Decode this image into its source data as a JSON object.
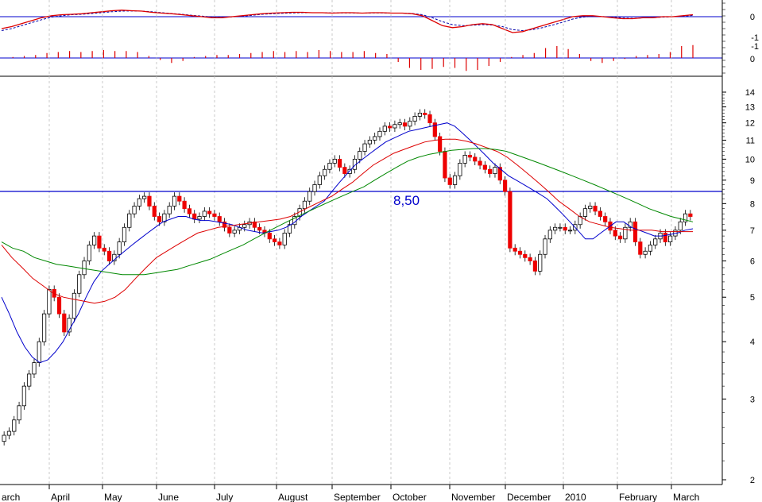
{
  "chart_data": {
    "type": "candlestick",
    "title": "",
    "scale": "log",
    "ylim": [
      2,
      16
    ],
    "y_ticks": [
      2,
      3,
      4,
      5,
      6,
      7,
      8,
      9,
      10,
      11,
      12,
      13,
      14
    ],
    "months": [
      "arch",
      "April",
      "May",
      "June",
      "July",
      "August",
      "September",
      "October",
      "November",
      "December",
      "2010",
      "February",
      "March"
    ],
    "reference_line": {
      "value": 8.5,
      "label": "8,50",
      "color": "#0000cc"
    },
    "price_close": [
      2.5,
      2.55,
      2.7,
      2.9,
      3.2,
      3.4,
      3.6,
      4.0,
      4.6,
      5.2,
      5.0,
      4.6,
      4.2,
      4.5,
      5.1,
      5.6,
      6.0,
      6.5,
      6.8,
      6.4,
      6.3,
      6.0,
      6.2,
      6.6,
      7.1,
      7.6,
      7.9,
      8.2,
      8.3,
      7.9,
      7.5,
      7.3,
      7.6,
      7.9,
      8.3,
      8.1,
      7.8,
      7.6,
      7.4,
      7.5,
      7.7,
      7.6,
      7.5,
      7.3,
      7.1,
      6.9,
      7.0,
      7.1,
      7.2,
      7.3,
      7.1,
      7.0,
      6.9,
      6.7,
      6.6,
      6.5,
      6.9,
      7.2,
      7.5,
      7.8,
      8.1,
      8.5,
      8.8,
      9.2,
      9.5,
      9.8,
      10.0,
      9.6,
      9.3,
      9.5,
      10.0,
      10.4,
      10.8,
      11.0,
      11.2,
      11.5,
      11.8,
      11.7,
      11.9,
      12.0,
      11.8,
      12.1,
      12.4,
      12.6,
      12.5,
      12.0,
      11.2,
      10.4,
      9.1,
      8.8,
      9.2,
      9.8,
      10.2,
      10.1,
      9.9,
      9.7,
      9.5,
      9.3,
      9.6,
      9.0,
      8.5,
      6.4,
      6.3,
      6.2,
      6.1,
      6.0,
      5.7,
      6.2,
      6.7,
      7.0,
      7.1,
      7.1,
      7.0,
      7.0,
      7.2,
      7.5,
      7.8,
      7.9,
      7.7,
      7.5,
      7.3,
      7.0,
      6.8,
      6.7,
      7.1,
      7.3,
      6.6,
      6.2,
      6.3,
      6.5,
      6.7,
      6.9,
      6.6,
      6.8,
      7.0,
      7.3,
      7.6,
      7.5
    ],
    "series": [
      {
        "name": "",
        "color": "#0000cc",
        "values": [
          5.0,
          4.6,
          4.2,
          3.9,
          3.7,
          3.6,
          3.65,
          3.8,
          4.0,
          4.3,
          4.6,
          5.0,
          5.4,
          5.7,
          5.9,
          6.1,
          6.3,
          6.5,
          6.7,
          6.9,
          7.1,
          7.3,
          7.4,
          7.5,
          7.5,
          7.4,
          7.35,
          7.35,
          7.3,
          7.25,
          7.2,
          7.1,
          7.0,
          6.95,
          6.9,
          6.95,
          7.0,
          7.1,
          7.25,
          7.5,
          7.7,
          7.9,
          8.1,
          8.5,
          8.9,
          9.3,
          9.7,
          10.0,
          10.3,
          10.6,
          10.9,
          11.1,
          11.3,
          11.5,
          11.6,
          11.7,
          11.8,
          11.9,
          12.0,
          11.8,
          11.4,
          11.0,
          10.6,
          10.2,
          9.8,
          9.5,
          9.2,
          9.0,
          8.8,
          8.6,
          8.4,
          8.2,
          7.9,
          7.6,
          7.3,
          7.0,
          6.7,
          6.7,
          6.9,
          7.1,
          7.3,
          7.3,
          7.1,
          7.0,
          6.9,
          6.8,
          6.8,
          6.85,
          6.9,
          7.0,
          7.05
        ]
      },
      {
        "name": "",
        "color": "#dd0000",
        "values": [
          6.5,
          6.1,
          5.8,
          5.5,
          5.3,
          5.1,
          5.0,
          4.95,
          4.9,
          4.85,
          4.9,
          5.0,
          5.2,
          5.5,
          5.8,
          6.1,
          6.3,
          6.5,
          6.7,
          6.9,
          7.0,
          7.1,
          7.15,
          7.2,
          7.25,
          7.3,
          7.35,
          7.4,
          7.5,
          7.7,
          7.9,
          8.1,
          8.3,
          8.6,
          8.9,
          9.3,
          9.7,
          10.0,
          10.3,
          10.5,
          10.7,
          10.9,
          11.0,
          11.05,
          11.05,
          10.95,
          10.8,
          10.6,
          10.4,
          10.1,
          9.7,
          9.3,
          8.9,
          8.5,
          8.1,
          7.8,
          7.5,
          7.3,
          7.2,
          7.1,
          7.05,
          7.0,
          7.0,
          7.0,
          6.95,
          6.95,
          6.95,
          6.95
        ]
      },
      {
        "name": "",
        "color": "#008800",
        "values": [
          6.6,
          6.4,
          6.3,
          6.1,
          6.0,
          5.9,
          5.85,
          5.8,
          5.75,
          5.7,
          5.65,
          5.6,
          5.6,
          5.6,
          5.65,
          5.7,
          5.75,
          5.85,
          5.95,
          6.05,
          6.2,
          6.35,
          6.5,
          6.7,
          6.9,
          7.1,
          7.3,
          7.5,
          7.7,
          7.9,
          8.1,
          8.3,
          8.5,
          8.7,
          9.0,
          9.3,
          9.6,
          9.9,
          10.1,
          10.25,
          10.35,
          10.45,
          10.5,
          10.55,
          10.55,
          10.5,
          10.4,
          10.2,
          10.0,
          9.8,
          9.6,
          9.4,
          9.2,
          9.0,
          8.8,
          8.6,
          8.4,
          8.2,
          8.0,
          7.8,
          7.65,
          7.5,
          7.4,
          7.3
        ]
      }
    ],
    "oscillator": {
      "ticks": [
        "0",
        "-1",
        "-1"
      ],
      "macd": [
        -0.6,
        -0.5,
        -0.35,
        -0.2,
        -0.05,
        0.05,
        0.1,
        0.12,
        0.15,
        0.2,
        0.25,
        0.3,
        0.33,
        0.3,
        0.28,
        0.22,
        0.18,
        0.15,
        0.1,
        0.05,
        0.0,
        -0.05,
        -0.05,
        0.0,
        0.05,
        0.1,
        0.15,
        0.18,
        0.2,
        0.22,
        0.22,
        0.2,
        0.2,
        0.18,
        0.2,
        0.2,
        0.18,
        0.2,
        0.2,
        0.18,
        0.18,
        0.15,
        0.05,
        -0.2,
        -0.45,
        -0.55,
        -0.5,
        -0.4,
        -0.35,
        -0.4,
        -0.6,
        -0.8,
        -0.75,
        -0.6,
        -0.45,
        -0.3,
        -0.15,
        0.0,
        0.05,
        0.05,
        0.0,
        -0.05,
        -0.1,
        -0.1,
        -0.05,
        -0.05,
        0.0,
        0.0,
        0.05,
        0.1
      ],
      "signal": [
        -0.7,
        -0.6,
        -0.45,
        -0.3,
        -0.15,
        -0.02,
        0.05,
        0.1,
        0.12,
        0.16,
        0.2,
        0.25,
        0.28,
        0.29,
        0.28,
        0.25,
        0.2,
        0.16,
        0.12,
        0.07,
        0.03,
        -0.02,
        -0.03,
        -0.01,
        0.03,
        0.07,
        0.12,
        0.15,
        0.17,
        0.19,
        0.2,
        0.2,
        0.2,
        0.19,
        0.19,
        0.19,
        0.18,
        0.19,
        0.19,
        0.18,
        0.18,
        0.16,
        0.1,
        -0.05,
        -0.25,
        -0.4,
        -0.45,
        -0.43,
        -0.4,
        -0.42,
        -0.5,
        -0.65,
        -0.7,
        -0.65,
        -0.55,
        -0.42,
        -0.28,
        -0.12,
        -0.02,
        0.02,
        0.01,
        -0.02,
        -0.06,
        -0.08,
        -0.06,
        -0.05,
        -0.02,
        0.0,
        0.03,
        0.06
      ],
      "histogram_ticks": [
        "0"
      ],
      "histogram": [
        0.0,
        0.05,
        0.1,
        0.15,
        0.25,
        0.3,
        0.35,
        0.3,
        0.35,
        0.4,
        0.35,
        0.35,
        0.3,
        0.1,
        -0.1,
        -0.25,
        -0.15,
        0.05,
        0.1,
        0.15,
        0.15,
        0.2,
        0.25,
        0.3,
        0.35,
        0.3,
        0.35,
        0.3,
        0.4,
        0.35,
        0.3,
        0.3,
        0.35,
        0.25,
        0.2,
        -0.2,
        -0.5,
        -0.6,
        -0.55,
        -0.45,
        -0.5,
        -0.65,
        -0.6,
        -0.4,
        -0.2,
        0.05,
        0.15,
        0.25,
        0.5,
        0.6,
        0.45,
        0.2,
        -0.15,
        -0.25,
        -0.15,
        -0.05,
        0.1,
        0.15,
        0.2,
        0.3,
        0.6,
        0.65
      ]
    }
  }
}
